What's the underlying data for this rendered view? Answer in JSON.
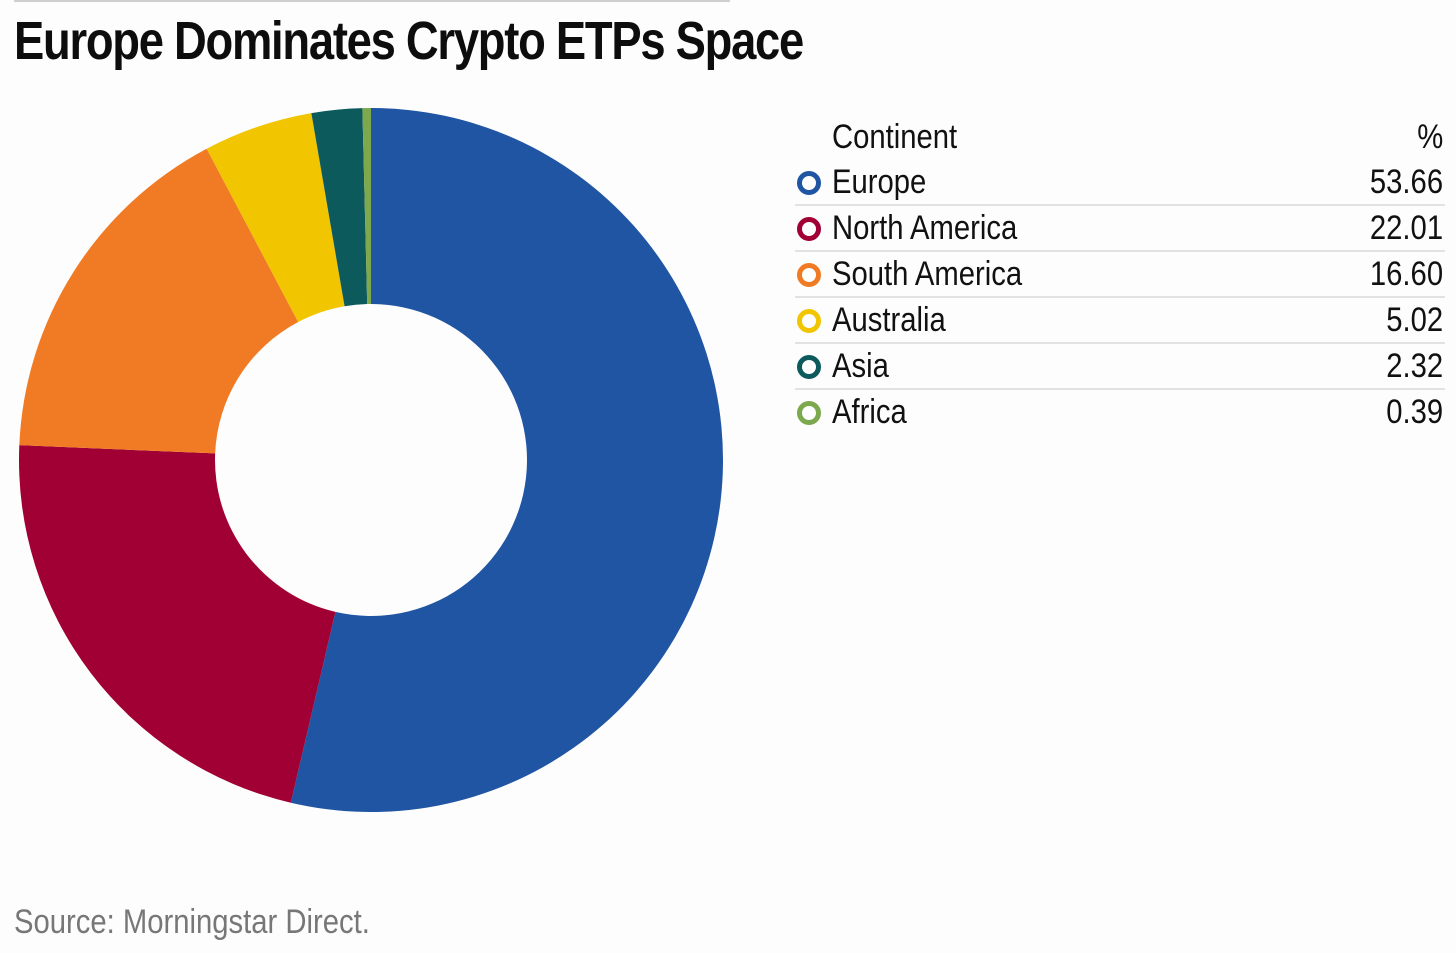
{
  "title": "Europe Dominates Crypto ETPs Space",
  "source": "Source: Morningstar Direct.",
  "legend": {
    "header_label": "Continent",
    "header_value": "%"
  },
  "chart_data": {
    "type": "pie",
    "style": "donut",
    "title": "Europe Dominates Crypto ETPs Space",
    "categories": [
      "Europe",
      "North America",
      "South America",
      "Australia",
      "Asia",
      "Africa"
    ],
    "values": [
      53.66,
      22.01,
      16.6,
      5.02,
      2.32,
      0.39
    ],
    "value_labels": [
      "53.66",
      "22.01",
      "16.60",
      "5.02",
      "2.32",
      "0.39"
    ],
    "colors": [
      "#1f55a2",
      "#a10034",
      "#f07b24",
      "#f1c500",
      "#0c5a5c",
      "#7ca84e"
    ],
    "legend_placement": "right"
  }
}
